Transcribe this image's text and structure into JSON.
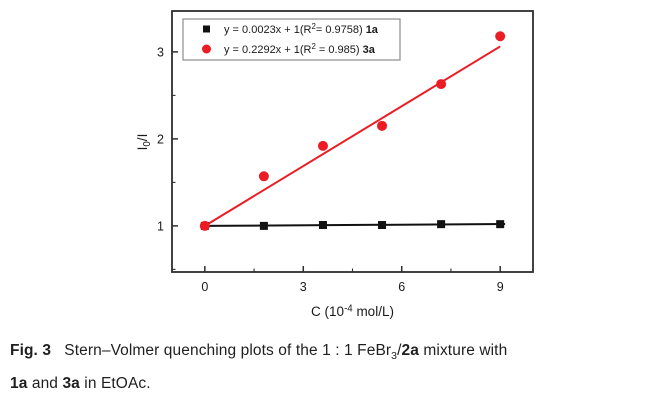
{
  "figure": {
    "caption_segments": [
      {
        "t": "Fig. 3",
        "b": true
      },
      {
        "t": "   Stern–Volmer quenching plots of the 1 : 1 FeBr"
      },
      {
        "t": "3",
        "sub": true
      },
      {
        "t": "/"
      },
      {
        "t": "2a",
        "b": true
      },
      {
        "t": " mixture with"
      },
      {
        "br": true
      },
      {
        "t": "1a",
        "b": true
      },
      {
        "t": " and "
      },
      {
        "t": "3a",
        "b": true
      },
      {
        "t": " in EtOAc."
      }
    ]
  },
  "chart_data": {
    "type": "scatter",
    "title": "",
    "xlabel_segments": [
      {
        "t": "C (10"
      },
      {
        "t": "-4",
        "sup": true
      },
      {
        "t": " mol/L)"
      }
    ],
    "ylabel_segments": [
      {
        "t": "I"
      },
      {
        "t": "0",
        "sub": true
      },
      {
        "t": "/I"
      }
    ],
    "xlim": [
      -1,
      10
    ],
    "ylim": [
      0.47,
      3.47
    ],
    "grid": false,
    "x_ticks": {
      "major": [
        0,
        3,
        6,
        9
      ],
      "labels": [
        "0",
        "3",
        "6",
        "9"
      ],
      "minor": [
        1.5,
        4.5,
        7.5
      ]
    },
    "y_ticks": {
      "major": [
        1,
        2,
        3
      ],
      "labels": [
        "1",
        "2",
        "3"
      ],
      "minor": [
        0.5,
        1.5,
        2.5
      ]
    },
    "legend": {
      "position": "top-left-inside",
      "border_color": "#8c8c8c",
      "background": "#ffffff"
    },
    "series": [
      {
        "name": "1a",
        "marker": "square",
        "color": "#111111",
        "x": [
          0,
          1.8,
          3.6,
          5.4,
          7.2,
          9.0
        ],
        "y": [
          1.0,
          1.0,
          1.01,
          1.01,
          1.02,
          1.02
        ],
        "fit_line": {
          "slope": 0.0023,
          "intercept": 1,
          "x_start": 0,
          "x_end": 9.15
        },
        "r_squared": 0.9758,
        "equation_segments": [
          {
            "t": "y = 0.0023x + 1(R"
          },
          {
            "t": "2",
            "sup": true
          },
          {
            "t": "= 0.9758) "
          },
          {
            "t": "1a",
            "b": true
          }
        ]
      },
      {
        "name": "3a",
        "marker": "circle",
        "color": "#ec1c24",
        "x": [
          0,
          1.8,
          3.6,
          5.4,
          7.2,
          9.0
        ],
        "y": [
          1.0,
          1.57,
          1.92,
          2.15,
          2.63,
          3.18
        ],
        "fit_line": {
          "slope": 0.2292,
          "intercept": 1,
          "x_start": 0,
          "x_end": 9.0
        },
        "r_squared": 0.985,
        "equation_segments": [
          {
            "t": "y = 0.2292x + 1(R"
          },
          {
            "t": "2",
            "sup": true
          },
          {
            "t": " = 0.985) "
          },
          {
            "t": "3a",
            "b": true
          }
        ]
      }
    ]
  },
  "colors": {
    "frame": "#2e2e2e",
    "text": "#1a1a1a",
    "background": "#ffffff",
    "accent_red": "#ec1c24",
    "series_black": "#111111"
  }
}
